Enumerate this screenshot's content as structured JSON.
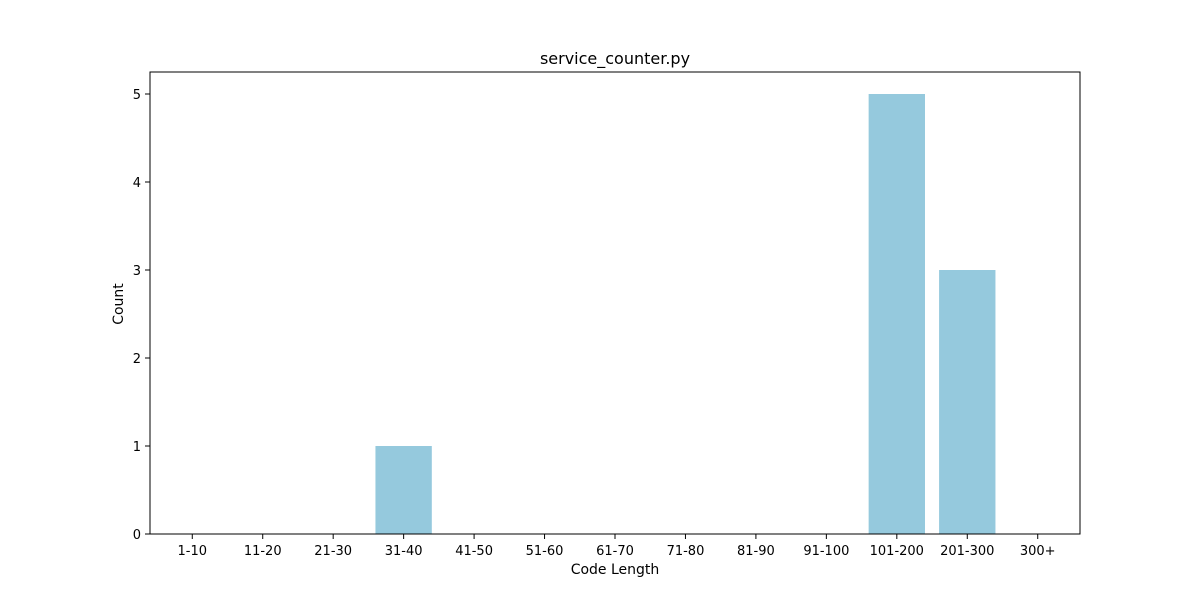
{
  "chart_data": {
    "type": "bar",
    "title": "service_counter.py",
    "xlabel": "Code Length",
    "ylabel": "Count",
    "categories": [
      "1-10",
      "11-20",
      "21-30",
      "31-40",
      "41-50",
      "51-60",
      "61-70",
      "71-80",
      "81-90",
      "91-100",
      "101-200",
      "201-300",
      "300+"
    ],
    "values": [
      0,
      0,
      0,
      1,
      0,
      0,
      0,
      0,
      0,
      0,
      5,
      3,
      0
    ],
    "ylim": [
      0,
      5.25
    ],
    "yticks": [
      0,
      1,
      2,
      3,
      4,
      5
    ],
    "grid": false,
    "colors": {
      "bar": "#95c9dd",
      "axis": "#000000",
      "background": "#ffffff"
    }
  }
}
